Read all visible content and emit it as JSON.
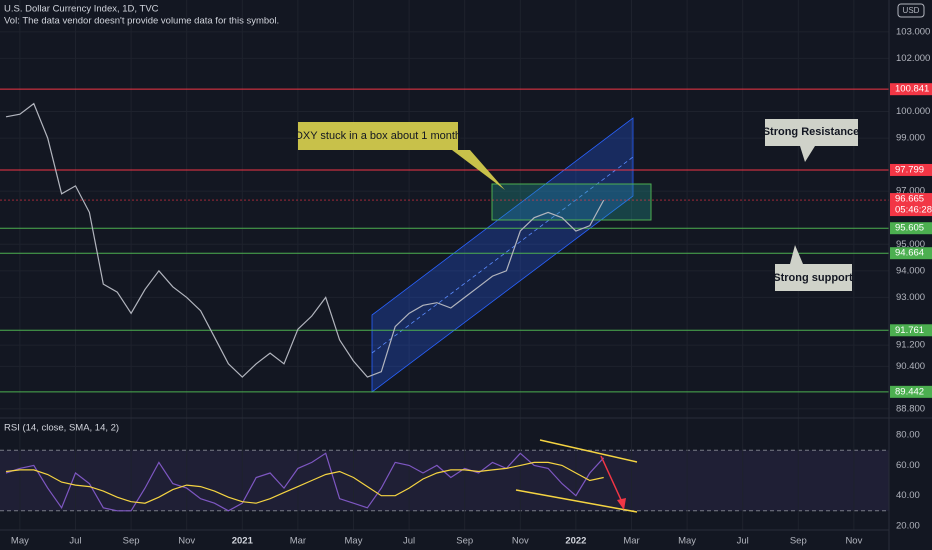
{
  "chart_data": [
    {
      "type": "line",
      "title": "U.S. Dollar Currency Index, 1D, TVC",
      "subtitle": "Vol: The data vendor doesn't provide volume data for this symbol.",
      "currency": "USD",
      "annotations": [
        "DXY stuck in a box about 1 month",
        "Strong Resistance",
        "Strong support"
      ],
      "categories": [
        null,
        "May",
        null,
        null,
        null,
        "Jul",
        null,
        null,
        null,
        "Sep",
        null,
        null,
        null,
        "Nov",
        null,
        null,
        null,
        "2021",
        null,
        null,
        null,
        "Mar",
        null,
        null,
        null,
        "May",
        null,
        null,
        null,
        "Jul",
        null,
        null,
        null,
        "Sep",
        null,
        null,
        null,
        "Nov",
        null,
        null,
        null,
        "2022",
        null,
        null,
        null,
        "Mar",
        null,
        null,
        null,
        "May",
        null,
        null,
        null,
        "Jul",
        null,
        null,
        null,
        "Sep",
        null,
        null,
        null,
        "Nov"
      ],
      "values": [
        99.8,
        99.9,
        100.3,
        99.0,
        96.9,
        97.2,
        96.2,
        93.5,
        93.2,
        92.4,
        93.3,
        94.0,
        93.4,
        93.0,
        92.5,
        91.5,
        90.5,
        90.0,
        90.5,
        90.9,
        90.5,
        91.8,
        92.3,
        93.0,
        91.4,
        90.6,
        90.0,
        90.2,
        91.9,
        92.4,
        92.7,
        92.8,
        92.6,
        93.0,
        93.4,
        93.8,
        94.0,
        95.5,
        96.0,
        96.2,
        96.0,
        95.5,
        95.7,
        96.665,
        null,
        null,
        null,
        null,
        null,
        null,
        null,
        null,
        null,
        null,
        null,
        null,
        null,
        null,
        null,
        null,
        null,
        null
      ],
      "color": "#b2b5be",
      "ylim": [
        88.57,
        104.2
      ],
      "yticks": [
        {
          "value": 103,
          "label": "103.000"
        },
        {
          "value": 102,
          "label": "102.000"
        },
        {
          "value": 100,
          "label": "100.000"
        },
        {
          "value": 99,
          "label": "99.000"
        },
        {
          "value": 97,
          "label": "97.000"
        },
        {
          "value": 95,
          "label": "95.000"
        },
        {
          "value": 94,
          "label": "94.000"
        },
        {
          "value": 93,
          "label": "93.000"
        },
        {
          "value": 91.2,
          "label": "91.200"
        },
        {
          "value": 90.4,
          "label": "90.400"
        },
        {
          "value": 88.8,
          "label": "88.800"
        }
      ],
      "levels": [
        {
          "value": 100.841,
          "color": "#f23645"
        },
        {
          "value": 97.799,
          "color": "#f23645"
        },
        {
          "value": 95.605,
          "color": "#4caf50"
        },
        {
          "value": 94.664,
          "color": "#4caf50"
        },
        {
          "value": 91.761,
          "color": "#4caf50"
        },
        {
          "value": 89.442,
          "color": "#4caf50"
        }
      ],
      "last_price": 96.665,
      "last_price_color": "#f23645",
      "timer": "05:46:28",
      "grid": true
    },
    {
      "type": "line",
      "title": "RSI (14, close, SMA, 14, 2)",
      "series": [
        {
          "color": "#7e57c2",
          "values": [
            55,
            58,
            60,
            45,
            32,
            55,
            48,
            32,
            30,
            30,
            45,
            62,
            48,
            45,
            38,
            35,
            30,
            35,
            52,
            55,
            45,
            58,
            62,
            68,
            38,
            35,
            32,
            45,
            62,
            60,
            55,
            60,
            52,
            58,
            55,
            62,
            58,
            68,
            60,
            58,
            48,
            40,
            55,
            65,
            null,
            null,
            null,
            null,
            null,
            null,
            null,
            null,
            null,
            null,
            null,
            null,
            null,
            null,
            null,
            null,
            null,
            null
          ]
        },
        {
          "color": "#f5d442",
          "values": [
            56,
            57,
            57,
            54,
            49,
            47,
            46,
            43,
            39,
            36,
            35,
            39,
            44,
            47,
            46,
            43,
            39,
            36,
            35,
            38,
            42,
            46,
            50,
            54,
            56,
            52,
            46,
            40,
            40,
            45,
            51,
            55,
            57,
            57,
            56,
            57,
            58,
            60,
            62,
            62,
            60,
            55,
            50,
            52,
            null,
            null,
            null,
            null,
            null,
            null,
            null,
            null,
            null,
            null,
            null,
            null,
            null,
            null,
            null,
            null,
            null,
            null
          ]
        }
      ],
      "ylim": [
        16,
        90
      ],
      "yticks": [
        {
          "value": 20,
          "label": "20.00"
        },
        {
          "value": 40,
          "label": "40.00"
        },
        {
          "value": 60,
          "label": "60.00"
        },
        {
          "value": 80,
          "label": "80.00"
        }
      ],
      "band": [
        30,
        70
      ]
    }
  ]
}
